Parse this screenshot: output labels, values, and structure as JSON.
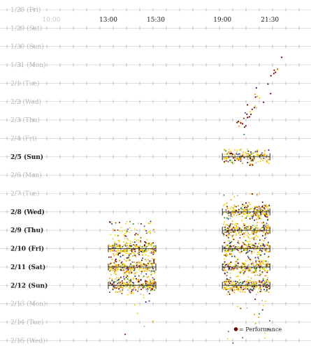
{
  "chart_data": {
    "type": "scatter",
    "colors": {
      "gridline": "#c9c9c9",
      "tick": "#9a9a9a",
      "bracket": "#333333",
      "legend_marker": "#7a0000"
    },
    "time_ticks": [
      {
        "label": "10:00",
        "hour": 10.0,
        "active": false
      },
      {
        "label": "13:00",
        "hour": 13.0,
        "active": true
      },
      {
        "label": "15:30",
        "hour": 15.5,
        "active": true
      },
      {
        "label": "19:00",
        "hour": 19.0,
        "active": true
      },
      {
        "label": "21:30",
        "hour": 21.5,
        "active": true
      }
    ],
    "days": [
      {
        "label": "1/28 (Fri)",
        "active": false
      },
      {
        "label": "1/29 (Sat)",
        "active": false
      },
      {
        "label": "1/30 (Sun)",
        "active": false
      },
      {
        "label": "1/31 (Mon)",
        "active": false
      },
      {
        "label": "2/1 (Tue)",
        "active": false
      },
      {
        "label": "2/2 (Wed)",
        "active": false
      },
      {
        "label": "2/3 (Thu)",
        "active": false
      },
      {
        "label": "2/4 (Fri)",
        "active": false
      },
      {
        "label": "2/5 (Sun)",
        "active": true
      },
      {
        "label": "2/6 (Mon)",
        "active": false
      },
      {
        "label": "2/7 (Tue)",
        "active": false
      },
      {
        "label": "2/8 (Wed)",
        "active": true
      },
      {
        "label": "2/9 (Thu)",
        "active": true
      },
      {
        "label": "2/10 (Fri)",
        "active": true
      },
      {
        "label": "2/11 (Sat)",
        "active": true
      },
      {
        "label": "2/12 (Sun)",
        "active": true
      },
      {
        "label": "2/13 (Mon)",
        "active": false
      },
      {
        "label": "2/14 (Tue)",
        "active": false
      },
      {
        "label": "2/15 (Wed)",
        "active": false
      }
    ],
    "sessions": [
      {
        "day": "2/5 (Sun)",
        "start": 19.0,
        "end": 21.5
      },
      {
        "day": "2/8 (Wed)",
        "start": 19.0,
        "end": 21.5
      },
      {
        "day": "2/9 (Thu)",
        "start": 19.0,
        "end": 21.5
      },
      {
        "day": "2/10 (Fri)",
        "start": 13.0,
        "end": 15.5
      },
      {
        "day": "2/10 (Fri)",
        "start": 19.0,
        "end": 21.5
      },
      {
        "day": "2/11 (Sat)",
        "start": 13.0,
        "end": 15.5
      },
      {
        "day": "2/11 (Sat)",
        "start": 19.0,
        "end": 21.5
      },
      {
        "day": "2/12 (Sun)",
        "start": 13.0,
        "end": 15.5
      },
      {
        "day": "2/12 (Sun)",
        "start": 19.0,
        "end": 21.5
      }
    ],
    "legend": {
      "label": "= Performance",
      "placement": "bottom-right"
    }
  }
}
